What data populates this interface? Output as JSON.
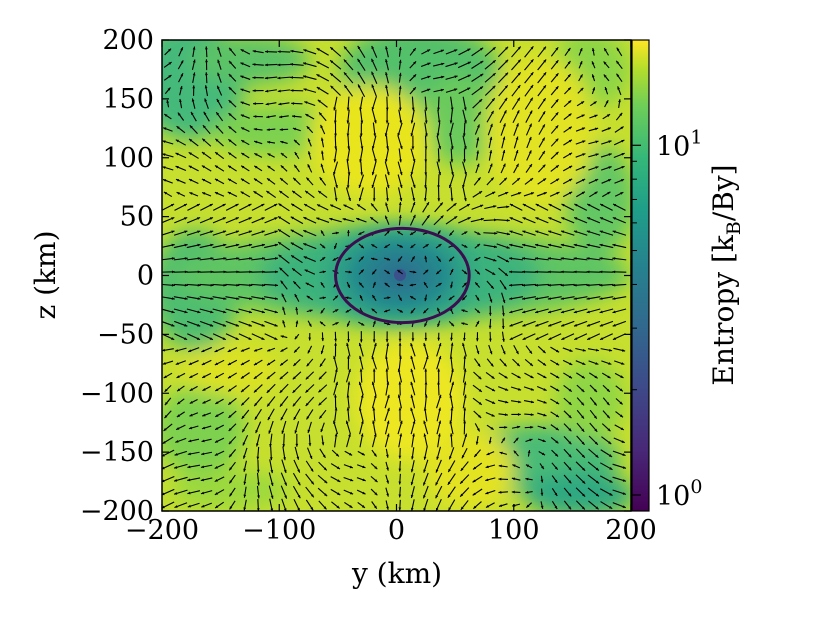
{
  "chart_data": {
    "type": "heatmap",
    "title": "",
    "xlabel": "y  (km)",
    "ylabel": "z  (km)",
    "xlim": [
      -200,
      200
    ],
    "ylim": [
      -200,
      200
    ],
    "x_ticks": [
      -200,
      -100,
      0,
      100,
      200
    ],
    "y_ticks": [
      -200,
      -150,
      -100,
      -50,
      0,
      50,
      100,
      150,
      200
    ],
    "x_tick_labels": [
      "−200",
      "−100",
      "0",
      "100",
      "200"
    ],
    "y_tick_labels": [
      "−200",
      "−150",
      "−100",
      "−50",
      "0",
      "50",
      "100",
      "150",
      "200"
    ],
    "colorbar": {
      "label_main": "Entropy [k",
      "label_sub": "B",
      "label_end": "/By]",
      "scale": "log",
      "range": [
        0.9,
        20
      ],
      "ticks": [
        {
          "value": 1,
          "base": "10",
          "exp": "0"
        },
        {
          "value": 10,
          "base": "10",
          "exp": "1"
        }
      ],
      "colormap": "viridis"
    },
    "field_description_values": {
      "background_entropy_high": 18,
      "equatorial_band_entropy": 8,
      "core_entropy": 4,
      "center_entropy": 1.5
    },
    "contour": {
      "y_center": 5,
      "z_center": 0,
      "y_semi_axis": 57,
      "z_semi_axis": 40
    },
    "vector_field": "velocity arrows",
    "grid": false
  }
}
